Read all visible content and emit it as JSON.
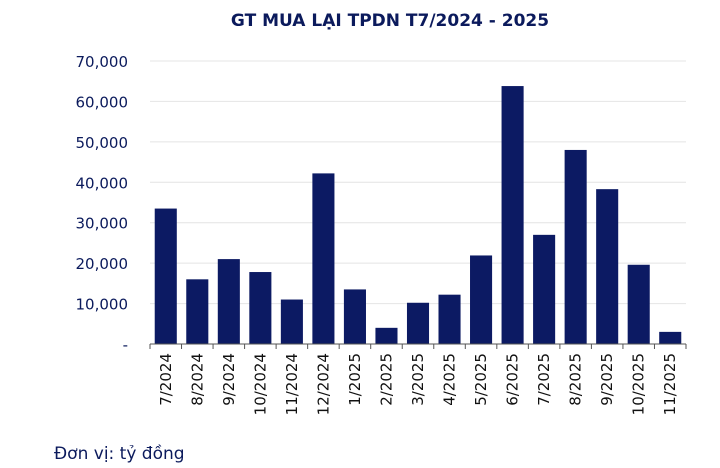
{
  "colors": {
    "bar": "#0c1a63",
    "text": "#0b1a5c",
    "axis": "#555555",
    "grid": "#e4e4e4"
  },
  "chart_data": {
    "type": "bar",
    "title": "GT MUA LẠI TPDN T7/2024 - 2025",
    "xlabel": "",
    "ylabel": "",
    "ylim": [
      0,
      70000
    ],
    "yticks": [
      0,
      10000,
      20000,
      30000,
      40000,
      50000,
      60000,
      70000
    ],
    "ytick_labels": [
      "-",
      "10,000",
      "20,000",
      "30,000",
      "40,000",
      "50,000",
      "60,000",
      "70,000"
    ],
    "grid": true,
    "categories": [
      "7/2024",
      "8/2024",
      "9/2024",
      "10/2024",
      "11/2024",
      "12/2024",
      "1/2025",
      "2/2025",
      "3/2025",
      "4/2025",
      "5/2025",
      "6/2025",
      "7/2025",
      "8/2025",
      "9/2025",
      "10/2025",
      "11/2025"
    ],
    "values": [
      33500,
      16000,
      21000,
      17800,
      11000,
      42200,
      13500,
      4000,
      10200,
      12200,
      21900,
      63800,
      27000,
      48000,
      38300,
      19600,
      3000
    ]
  },
  "footnote": "Đơn vị: tỷ đồng"
}
